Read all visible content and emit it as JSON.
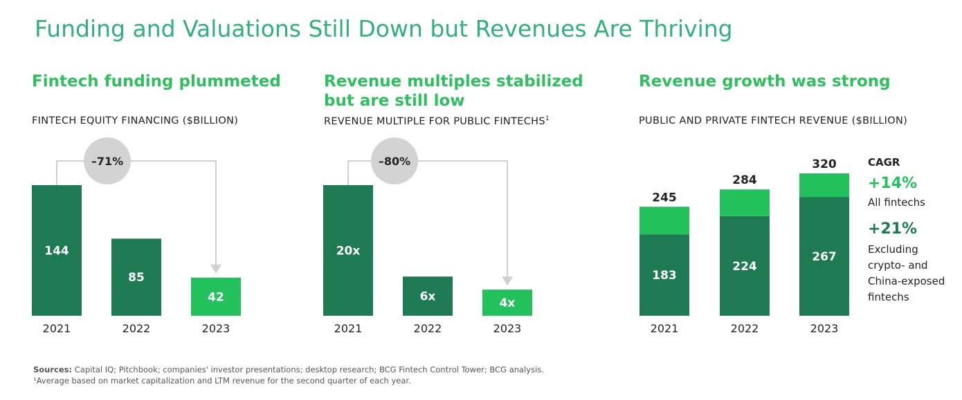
{
  "title": "Funding and Valuations Still Down but Revenues Are Thriving",
  "panels": [
    {
      "heading": "Fintech funding plummeted",
      "subtitle": "FINTECH EQUITY FINANCING ($BILLION)"
    },
    {
      "heading_line1": "Revenue multiples stabilized",
      "heading_line2": "but are still low",
      "subtitle": "REVENUE MULTIPLE FOR PUBLIC FINTECHS",
      "subtitle_sup": "1"
    },
    {
      "heading": "Revenue growth was strong",
      "subtitle": "PUBLIC AND PRIVATE FINTECH REVENUE ($BILLION)"
    }
  ],
  "cagr": {
    "label": "CAGR",
    "items": [
      {
        "value": "+14%",
        "desc_lines": [
          "All fintechs"
        ]
      },
      {
        "value": "+21%",
        "desc_lines": [
          "Excluding",
          "crypto- and",
          "China-exposed",
          "fintechs"
        ]
      }
    ]
  },
  "sources": {
    "label": "Sources:",
    "text": " Capital IQ; Pitchbook; companies' investor presentations; desktop research; BCG Fintech Control Tower; BCG analysis.",
    "footnote": "¹Average based on market capitalization and LTM revenue for the second quarter of each year."
  },
  "colors": {
    "dark": "#1e7a52",
    "light": "#23c15c",
    "arrow": "#d0d0d0",
    "bubble": "#d3d3d3"
  },
  "chart_data": [
    {
      "type": "bar",
      "title": "FINTECH EQUITY FINANCING ($BILLION)",
      "categories": [
        "2021",
        "2022",
        "2023"
      ],
      "values": [
        144,
        85,
        42
      ],
      "labels": [
        "144",
        "85",
        "42"
      ],
      "highlight_index": 2,
      "change_label": "–71%",
      "ylim": [
        0,
        144
      ]
    },
    {
      "type": "bar",
      "title": "REVENUE MULTIPLE FOR PUBLIC FINTECHS",
      "categories": [
        "2021",
        "2022",
        "2023"
      ],
      "values": [
        20,
        6,
        4
      ],
      "labels": [
        "20x",
        "6x",
        "4x"
      ],
      "highlight_index": 2,
      "change_label": "–80%",
      "ylim": [
        0,
        20
      ]
    },
    {
      "type": "bar",
      "title": "PUBLIC AND PRIVATE FINTECH REVENUE ($BILLION)",
      "stacked": true,
      "categories": [
        "2021",
        "2022",
        "2023"
      ],
      "series": [
        {
          "name": "Excluding crypto- and China-exposed fintechs",
          "values": [
            183,
            224,
            267
          ]
        },
        {
          "name": "Crypto- and China-exposed fintechs",
          "values": [
            62,
            60,
            53
          ]
        }
      ],
      "totals": [
        245,
        284,
        320
      ],
      "ylim": [
        0,
        320
      ]
    }
  ]
}
